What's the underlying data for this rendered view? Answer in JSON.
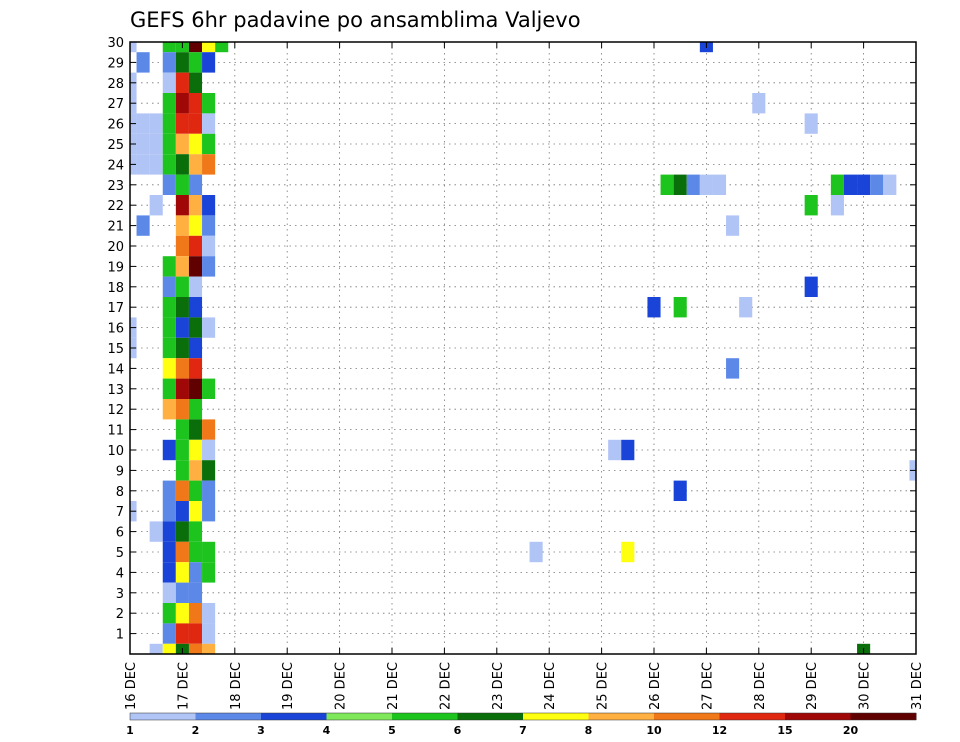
{
  "chart_data": {
    "type": "heatmap",
    "title": "GEFS 6hr padavine po ansamblima Valjevo",
    "x_tick_labels": [
      "16 DEC",
      "17 DEC",
      "18 DEC",
      "19 DEC",
      "20 DEC",
      "21 DEC",
      "22 DEC",
      "23 DEC",
      "24 DEC",
      "25 DEC",
      "26 DEC",
      "27 DEC",
      "28 DEC",
      "29 DEC",
      "30 DEC",
      "31 DEC"
    ],
    "y_tick_labels": [
      "1",
      "2",
      "3",
      "4",
      "5",
      "6",
      "7",
      "8",
      "9",
      "10",
      "11",
      "12",
      "13",
      "14",
      "15",
      "16",
      "17",
      "18",
      "19",
      "20",
      "21",
      "22",
      "23",
      "24",
      "25",
      "26",
      "27",
      "28",
      "29",
      "30"
    ],
    "x_range_days": [
      16,
      31
    ],
    "y_range": [
      0,
      30
    ],
    "grid": true,
    "legend": {
      "placement": "bottom",
      "labels": [
        "1",
        "2",
        "3",
        "4",
        "5",
        "6",
        "7",
        "8",
        "10",
        "12",
        "15",
        "20"
      ],
      "colors": [
        "#b0c4f5",
        "#5c88e8",
        "#1a44d8",
        "#7ee85a",
        "#1ec41e",
        "#0a6e0a",
        "#ffff10",
        "#ffb040",
        "#f07818",
        "#e02810",
        "#a00808",
        "#600000"
      ]
    },
    "cells_note_units": "x = day of December (6-hour steps), y = ensemble member, level = legend color index 0-11",
    "cells": [
      [
        16.0,
        30,
        0
      ],
      [
        16.25,
        29,
        1
      ],
      [
        16.0,
        28,
        0
      ],
      [
        16.0,
        27,
        0
      ],
      [
        16.0,
        26,
        0
      ],
      [
        16.25,
        26,
        0
      ],
      [
        16.5,
        26,
        0
      ],
      [
        16.0,
        25,
        0
      ],
      [
        16.25,
        25,
        0
      ],
      [
        16.5,
        25,
        0
      ],
      [
        16.0,
        24,
        0
      ],
      [
        16.25,
        24,
        0
      ],
      [
        16.5,
        24,
        0
      ],
      [
        16.5,
        22,
        0
      ],
      [
        16.25,
        21,
        1
      ],
      [
        16.0,
        16,
        0
      ],
      [
        16.0,
        15,
        0
      ],
      [
        16.0,
        7,
        0
      ],
      [
        16.5,
        6,
        0
      ],
      [
        16.5,
        0,
        0
      ],
      [
        16.75,
        30,
        4
      ],
      [
        17.0,
        30,
        4
      ],
      [
        17.25,
        30,
        11
      ],
      [
        17.5,
        30,
        6
      ],
      [
        17.75,
        30,
        4
      ],
      [
        16.75,
        29,
        1
      ],
      [
        17.0,
        29,
        5
      ],
      [
        17.25,
        29,
        4
      ],
      [
        17.5,
        29,
        2
      ],
      [
        16.75,
        28,
        0
      ],
      [
        17.0,
        28,
        9
      ],
      [
        17.25,
        28,
        5
      ],
      [
        16.75,
        27,
        4
      ],
      [
        17.0,
        27,
        10
      ],
      [
        17.25,
        27,
        9
      ],
      [
        17.5,
        27,
        4
      ],
      [
        16.75,
        26,
        4
      ],
      [
        17.0,
        26,
        9
      ],
      [
        17.25,
        26,
        9
      ],
      [
        17.5,
        26,
        0
      ],
      [
        16.75,
        25,
        4
      ],
      [
        17.0,
        25,
        7
      ],
      [
        17.25,
        25,
        6
      ],
      [
        17.5,
        25,
        4
      ],
      [
        16.75,
        24,
        4
      ],
      [
        17.0,
        24,
        5
      ],
      [
        17.25,
        24,
        7
      ],
      [
        17.5,
        24,
        8
      ],
      [
        16.75,
        23,
        1
      ],
      [
        17.0,
        23,
        4
      ],
      [
        17.25,
        23,
        1
      ],
      [
        17.0,
        22,
        10
      ],
      [
        17.25,
        22,
        7
      ],
      [
        17.5,
        22,
        2
      ],
      [
        17.0,
        21,
        7
      ],
      [
        17.25,
        21,
        6
      ],
      [
        17.5,
        21,
        1
      ],
      [
        17.0,
        20,
        8
      ],
      [
        17.25,
        20,
        9
      ],
      [
        17.5,
        20,
        0
      ],
      [
        16.75,
        19,
        4
      ],
      [
        17.0,
        19,
        7
      ],
      [
        17.25,
        19,
        11
      ],
      [
        17.5,
        19,
        1
      ],
      [
        16.75,
        18,
        1
      ],
      [
        17.0,
        18,
        4
      ],
      [
        17.25,
        18,
        0
      ],
      [
        16.75,
        17,
        4
      ],
      [
        17.0,
        17,
        5
      ],
      [
        17.25,
        17,
        2
      ],
      [
        16.75,
        16,
        4
      ],
      [
        17.0,
        16,
        2
      ],
      [
        17.25,
        16,
        5
      ],
      [
        17.5,
        16,
        0
      ],
      [
        16.75,
        15,
        4
      ],
      [
        17.0,
        15,
        5
      ],
      [
        17.25,
        15,
        2
      ],
      [
        16.75,
        14,
        6
      ],
      [
        17.0,
        14,
        8
      ],
      [
        17.25,
        14,
        9
      ],
      [
        16.75,
        13,
        4
      ],
      [
        17.0,
        13,
        10
      ],
      [
        17.25,
        13,
        11
      ],
      [
        17.5,
        13,
        4
      ],
      [
        16.75,
        12,
        7
      ],
      [
        17.0,
        12,
        8
      ],
      [
        17.25,
        12,
        4
      ],
      [
        17.0,
        11,
        4
      ],
      [
        17.25,
        11,
        5
      ],
      [
        17.5,
        11,
        8
      ],
      [
        16.75,
        10,
        2
      ],
      [
        17.0,
        10,
        4
      ],
      [
        17.25,
        10,
        6
      ],
      [
        17.5,
        10,
        0
      ],
      [
        17.0,
        9,
        4
      ],
      [
        17.25,
        9,
        7
      ],
      [
        17.5,
        9,
        5
      ],
      [
        16.75,
        8,
        1
      ],
      [
        17.0,
        8,
        8
      ],
      [
        17.25,
        8,
        4
      ],
      [
        17.5,
        8,
        1
      ],
      [
        16.75,
        7,
        1
      ],
      [
        17.0,
        7,
        2
      ],
      [
        17.25,
        7,
        6
      ],
      [
        17.5,
        7,
        1
      ],
      [
        16.75,
        6,
        2
      ],
      [
        17.0,
        6,
        5
      ],
      [
        17.25,
        6,
        4
      ],
      [
        16.75,
        5,
        2
      ],
      [
        17.0,
        5,
        8
      ],
      [
        17.25,
        5,
        4
      ],
      [
        17.5,
        5,
        4
      ],
      [
        16.75,
        4,
        2
      ],
      [
        17.0,
        4,
        6
      ],
      [
        17.25,
        4,
        1
      ],
      [
        17.5,
        4,
        4
      ],
      [
        16.75,
        3,
        0
      ],
      [
        17.0,
        3,
        1
      ],
      [
        17.25,
        3,
        1
      ],
      [
        16.75,
        2,
        4
      ],
      [
        17.0,
        2,
        6
      ],
      [
        17.25,
        2,
        8
      ],
      [
        17.5,
        2,
        0
      ],
      [
        16.75,
        1,
        1
      ],
      [
        17.0,
        1,
        9
      ],
      [
        17.25,
        1,
        9
      ],
      [
        17.5,
        1,
        0
      ],
      [
        16.75,
        0,
        6
      ],
      [
        17.0,
        0,
        5
      ],
      [
        17.25,
        0,
        8
      ],
      [
        17.5,
        0,
        7
      ],
      [
        27.0,
        30,
        2
      ],
      [
        28.0,
        27,
        0
      ],
      [
        29.0,
        26,
        0
      ],
      [
        26.25,
        23,
        4
      ],
      [
        26.5,
        23,
        5
      ],
      [
        26.75,
        23,
        1
      ],
      [
        27.0,
        23,
        0
      ],
      [
        27.25,
        23,
        0
      ],
      [
        29.5,
        23,
        4
      ],
      [
        29.75,
        23,
        2
      ],
      [
        30.0,
        23,
        2
      ],
      [
        30.25,
        23,
        1
      ],
      [
        30.5,
        23,
        0
      ],
      [
        29.0,
        22,
        4
      ],
      [
        29.5,
        22,
        0
      ],
      [
        27.5,
        21,
        0
      ],
      [
        29.0,
        18,
        2
      ],
      [
        26.0,
        17,
        2
      ],
      [
        26.5,
        17,
        4
      ],
      [
        27.75,
        17,
        0
      ],
      [
        27.5,
        14,
        1
      ],
      [
        25.25,
        10,
        0
      ],
      [
        25.5,
        10,
        2
      ],
      [
        31.0,
        9,
        0
      ],
      [
        26.5,
        8,
        2
      ],
      [
        23.75,
        5,
        0
      ],
      [
        25.5,
        5,
        6
      ],
      [
        30.0,
        0,
        5
      ]
    ]
  }
}
